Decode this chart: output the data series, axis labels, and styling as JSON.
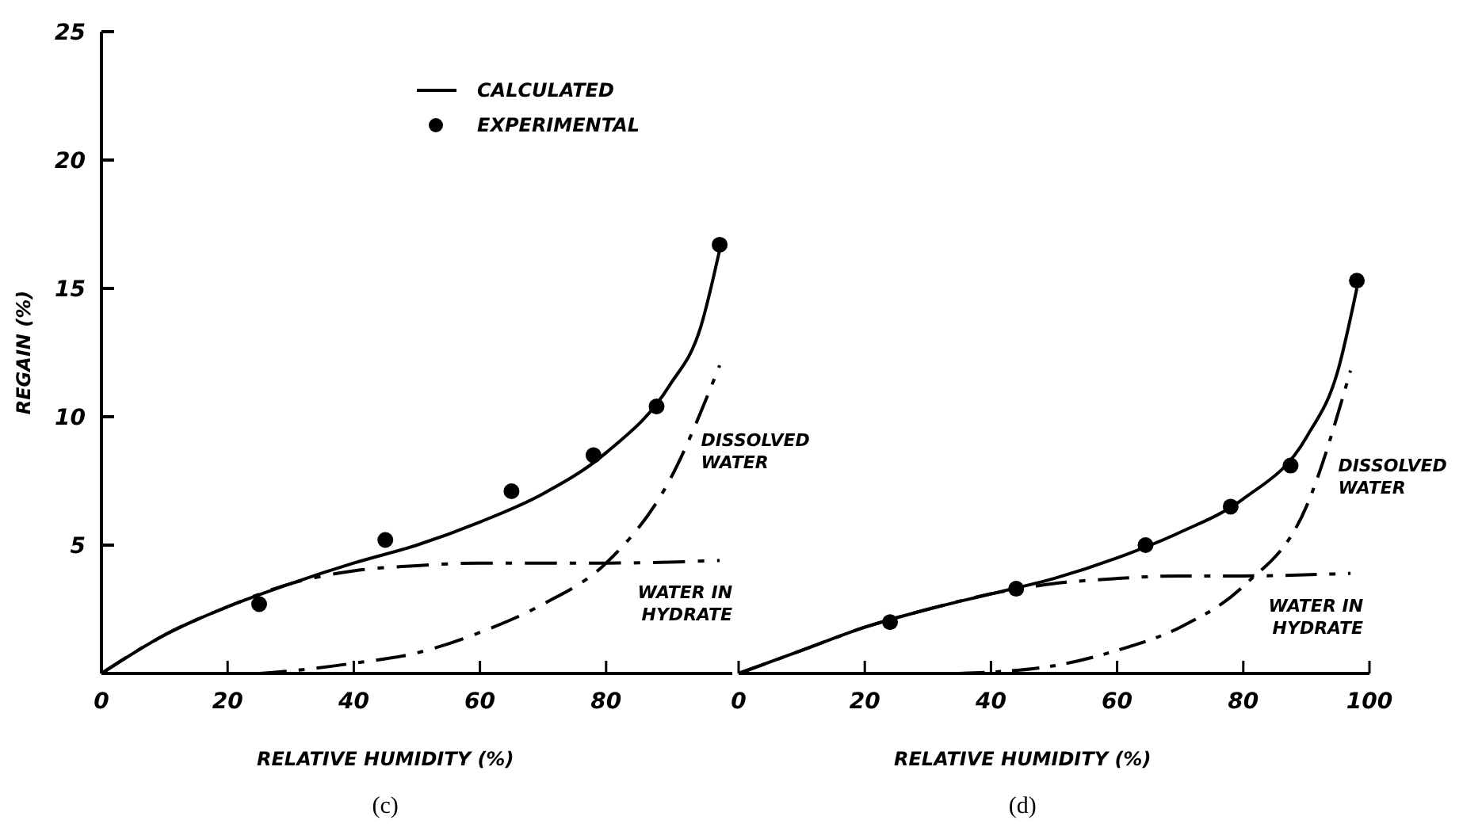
{
  "chart_data": [
    {
      "type": "line",
      "title": "(c)",
      "xlabel": "RELATIVE HUMIDITY (%)",
      "ylabel": "REGAIN (%)",
      "xlim": [
        0,
        100
      ],
      "xticks": [
        0,
        20,
        40,
        60,
        80
      ],
      "ylim": [
        0,
        25
      ],
      "yticks": [
        5,
        10,
        15,
        20,
        25
      ],
      "legend": "top",
      "series": [
        {
          "type": "line",
          "name": "CALCULATED",
          "color": "#000000",
          "line_style": "solid",
          "x": [
            0,
            10,
            20,
            30,
            40,
            50,
            60,
            70,
            80,
            90,
            95,
            98
          ],
          "values": [
            0,
            1.5,
            2.6,
            3.5,
            4.3,
            5.0,
            5.9,
            7.0,
            8.6,
            11.2,
            13.5,
            16.5
          ]
        },
        {
          "type": "scatter",
          "name": "EXPERIMENTAL",
          "color": "#000000",
          "marker": "circle",
          "x": [
            25,
            45,
            65,
            78,
            88,
            98
          ],
          "values": [
            2.7,
            5.2,
            7.1,
            8.5,
            10.4,
            16.7
          ]
        },
        {
          "type": "line",
          "name": "WATER IN HYDRATE",
          "color": "#000000",
          "line_style": "dashed",
          "x": [
            0,
            10,
            20,
            30,
            40,
            50,
            60,
            70,
            80,
            98
          ],
          "values": [
            0,
            1.5,
            2.6,
            3.5,
            4.0,
            4.2,
            4.3,
            4.3,
            4.3,
            4.4
          ]
        },
        {
          "type": "line",
          "name": "DISSOLVED WATER",
          "color": "#000000",
          "line_style": "dashed",
          "x": [
            25,
            30,
            40,
            50,
            60,
            70,
            80,
            90,
            98
          ],
          "values": [
            0,
            0.1,
            0.4,
            0.8,
            1.6,
            2.7,
            4.3,
            7.5,
            12.0
          ]
        }
      ]
    },
    {
      "type": "line",
      "title": "(d)",
      "xlabel": "RELATIVE HUMIDITY (%)",
      "xlim": [
        0,
        100
      ],
      "xticks": [
        0,
        20,
        40,
        60,
        80,
        100
      ],
      "ylim": [
        0,
        25
      ],
      "tick_labels": "x",
      "series": [
        {
          "type": "line",
          "color": "#000000",
          "line_style": "solid",
          "x": [
            0,
            10,
            20,
            30,
            40,
            50,
            60,
            70,
            80,
            90,
            95,
            98
          ],
          "values": [
            0,
            0.9,
            1.8,
            2.5,
            3.1,
            3.7,
            4.5,
            5.5,
            6.8,
            9.2,
            11.8,
            15.0
          ]
        },
        {
          "type": "scatter",
          "color": "#000000",
          "marker": "circle",
          "x": [
            24,
            44,
            64.5,
            78,
            87.5,
            98
          ],
          "values": [
            2.0,
            3.3,
            5.0,
            6.5,
            8.1,
            15.3
          ]
        },
        {
          "type": "line",
          "name": "WATER IN HYDRATE",
          "color": "#000000",
          "line_style": "dashed",
          "x": [
            0,
            10,
            20,
            30,
            40,
            50,
            60,
            70,
            80,
            97
          ],
          "values": [
            0,
            0.9,
            1.8,
            2.5,
            3.1,
            3.5,
            3.7,
            3.8,
            3.8,
            3.9
          ]
        },
        {
          "type": "line",
          "name": "DISSOLVED WATER",
          "color": "#000000",
          "line_style": "dashed",
          "x": [
            35,
            40,
            50,
            60,
            70,
            80,
            90,
            97
          ],
          "values": [
            0,
            0.05,
            0.3,
            0.9,
            1.8,
            3.4,
            6.5,
            11.8
          ]
        }
      ]
    }
  ]
}
